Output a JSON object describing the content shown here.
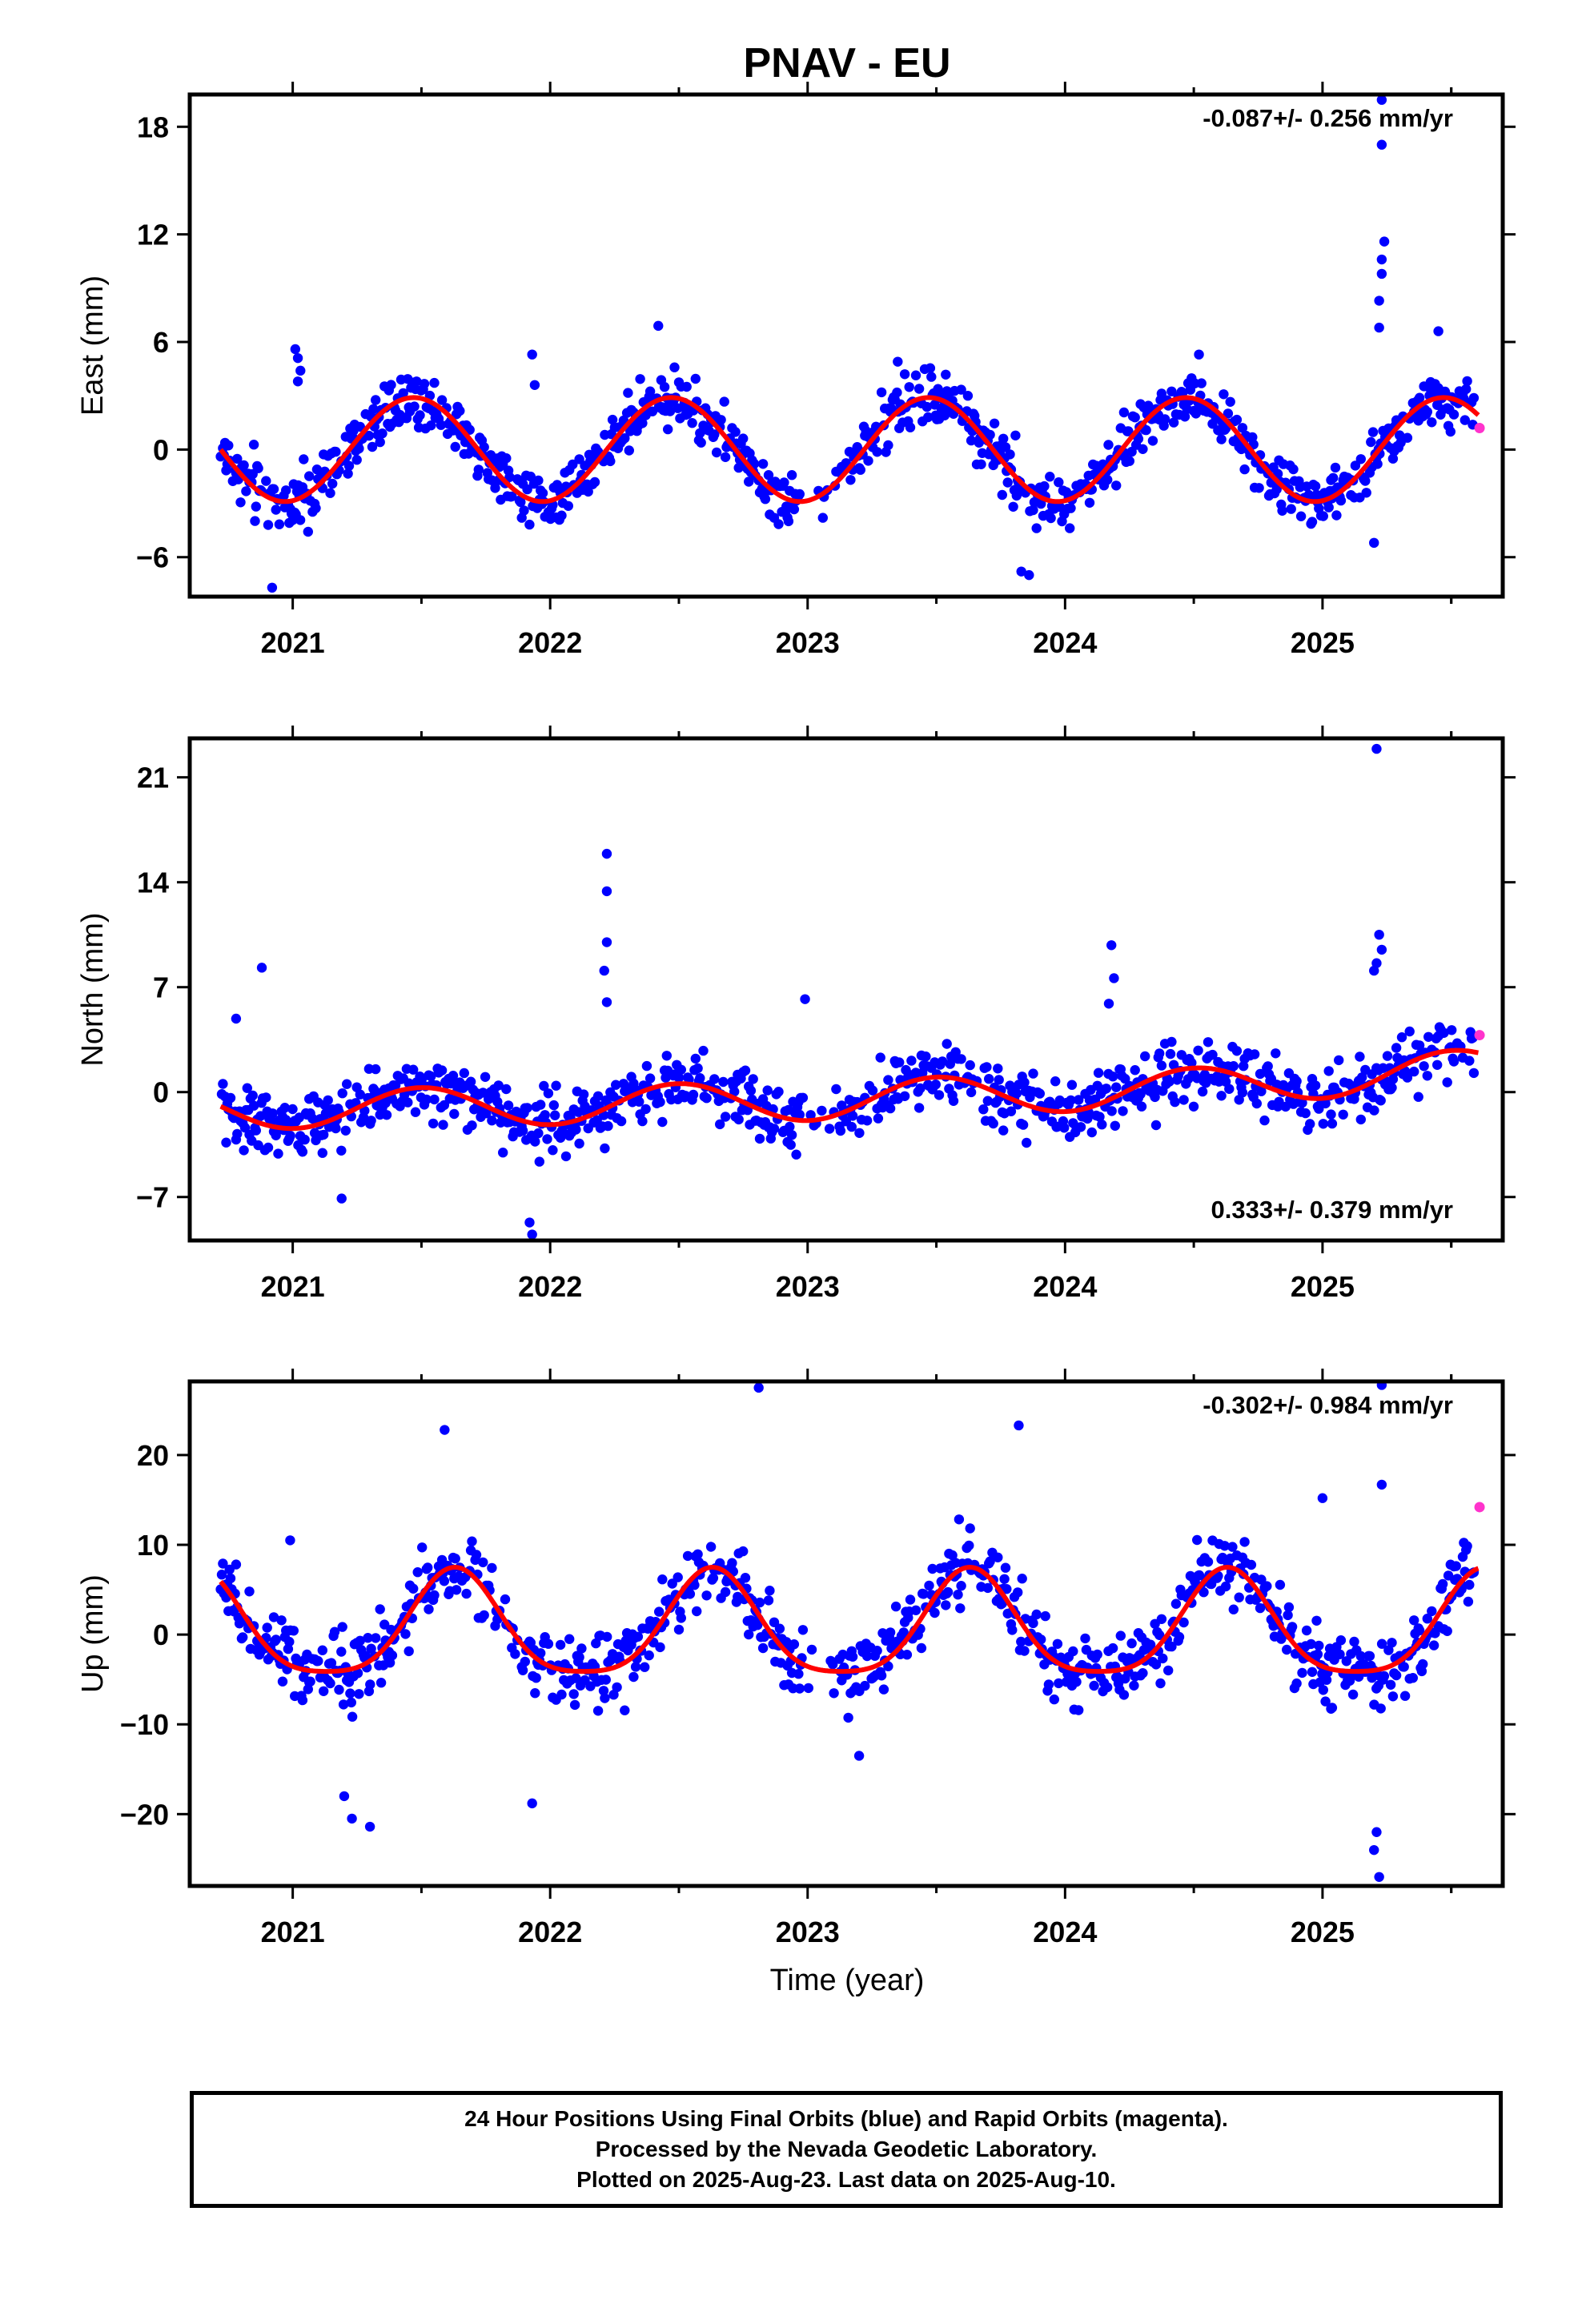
{
  "title": "PNAV - EU",
  "x_label": "Time (year)",
  "x_ticks": [
    "2021",
    "2022",
    "2023",
    "2024",
    "2025"
  ],
  "footer": {
    "line1": "24 Hour Positions Using Final Orbits (blue) and Rapid Orbits (magenta).",
    "line2": "Processed by the Nevada Geodetic Laboratory.",
    "line3": "Plotted on 2025-Aug-23. Last data on 2025-Aug-10."
  },
  "colors": {
    "final_orbits": "#0000ff",
    "rapid_orbits": "#ff33cc",
    "model_fit": "#ff0000"
  },
  "chart_data": [
    {
      "type": "scatter",
      "panel": "east",
      "ylabel": "East (mm)",
      "rate_text": "-0.087+/- 0.256 mm/yr",
      "rate_position": "top-right",
      "xlim": [
        2020.6,
        2025.7
      ],
      "ylim": [
        -8.2,
        19.8
      ],
      "yticks": [
        18,
        12,
        6,
        0,
        -6
      ],
      "fit": {
        "offset": 0.0,
        "annual_amplitude": 2.9,
        "annual_peak": 2020.47,
        "semiannual_amplitude": 0.0,
        "semiannual_peak": 2020.0
      },
      "noise": 1.3,
      "rapid": [
        {
          "x": 2025.61,
          "y": 1.2
        }
      ],
      "outliers": [
        {
          "x": 2020.92,
          "y": -7.7
        },
        {
          "x": 2021.01,
          "y": 5.6
        },
        {
          "x": 2021.02,
          "y": 5.1
        },
        {
          "x": 2021.03,
          "y": 4.4
        },
        {
          "x": 2021.02,
          "y": 3.8
        },
        {
          "x": 2021.93,
          "y": 5.3
        },
        {
          "x": 2021.94,
          "y": 3.6
        },
        {
          "x": 2022.42,
          "y": 6.9
        },
        {
          "x": 2023.35,
          "y": 4.9
        },
        {
          "x": 2023.83,
          "y": -6.8
        },
        {
          "x": 2023.86,
          "y": -7.0
        },
        {
          "x": 2024.52,
          "y": 5.3
        },
        {
          "x": 2025.2,
          "y": -5.2
        },
        {
          "x": 2025.22,
          "y": 6.8
        },
        {
          "x": 2025.22,
          "y": 8.3
        },
        {
          "x": 2025.23,
          "y": 9.8
        },
        {
          "x": 2025.23,
          "y": 10.6
        },
        {
          "x": 2025.24,
          "y": 11.6
        },
        {
          "x": 2025.23,
          "y": 17.0
        },
        {
          "x": 2025.23,
          "y": 19.5
        },
        {
          "x": 2025.45,
          "y": 6.6
        }
      ]
    },
    {
      "type": "scatter",
      "panel": "north",
      "ylabel": "North (mm)",
      "rate_text": "0.333+/- 0.379 mm/yr",
      "rate_position": "bottom-right",
      "xlim": [
        2020.6,
        2025.7
      ],
      "ylim": [
        -9.9,
        23.6
      ],
      "yticks": [
        21,
        14,
        7,
        0,
        -7
      ],
      "fit": {
        "offset": 0.0,
        "annual_amplitude": 1.3,
        "annual_peak": 2020.5,
        "semiannual_amplitude": 0.0,
        "semiannual_peak": 2020.0
      },
      "trend": [
        {
          "x": 2020.72,
          "y": -1.2
        },
        {
          "x": 2021.9,
          "y": -0.9
        },
        {
          "x": 2023.0,
          "y": -0.6
        },
        {
          "x": 2024.5,
          "y": 0.3
        },
        {
          "x": 2025.61,
          "y": 1.6
        }
      ],
      "noise": 1.7,
      "rapid": [
        {
          "x": 2025.61,
          "y": 3.8
        }
      ],
      "outliers": [
        {
          "x": 2020.88,
          "y": 8.3
        },
        {
          "x": 2020.78,
          "y": 4.9
        },
        {
          "x": 2021.19,
          "y": -7.1
        },
        {
          "x": 2021.92,
          "y": -8.7
        },
        {
          "x": 2021.93,
          "y": -9.5
        },
        {
          "x": 2022.22,
          "y": 15.9
        },
        {
          "x": 2022.22,
          "y": 13.4
        },
        {
          "x": 2022.22,
          "y": 10.0
        },
        {
          "x": 2022.21,
          "y": 8.1
        },
        {
          "x": 2022.22,
          "y": 6.0
        },
        {
          "x": 2022.99,
          "y": 6.2
        },
        {
          "x": 2024.18,
          "y": 9.8
        },
        {
          "x": 2024.19,
          "y": 7.6
        },
        {
          "x": 2024.17,
          "y": 5.9
        },
        {
          "x": 2025.21,
          "y": 22.9
        },
        {
          "x": 2025.22,
          "y": 10.5
        },
        {
          "x": 2025.23,
          "y": 9.5
        },
        {
          "x": 2025.21,
          "y": 8.6
        },
        {
          "x": 2025.2,
          "y": 8.1
        }
      ]
    },
    {
      "type": "scatter",
      "panel": "up",
      "ylabel": "Up (mm)",
      "rate_text": "-0.302+/- 0.984 mm/yr",
      "rate_position": "top-right",
      "xlim": [
        2020.6,
        2025.7
      ],
      "ylim": [
        -28.0,
        28.2
      ],
      "yticks": [
        20,
        10,
        0,
        -10,
        -20
      ],
      "fit": {
        "offset": 0.5,
        "annual_amplitude": 5.8,
        "annual_peak": 2020.63,
        "semiannual_amplitude": 1.2,
        "semiannual_peak": 2020.63
      },
      "noise": 3.2,
      "rapid": [
        {
          "x": 2025.61,
          "y": 14.2
        }
      ],
      "outliers": [
        {
          "x": 2020.99,
          "y": 10.5
        },
        {
          "x": 2021.23,
          "y": -20.5
        },
        {
          "x": 2021.3,
          "y": -21.4
        },
        {
          "x": 2021.2,
          "y": -18.0
        },
        {
          "x": 2021.59,
          "y": 22.8
        },
        {
          "x": 2021.93,
          "y": -18.8
        },
        {
          "x": 2022.81,
          "y": 27.5
        },
        {
          "x": 2023.82,
          "y": 23.3
        },
        {
          "x": 2023.2,
          "y": -13.5
        },
        {
          "x": 2025.23,
          "y": 27.8
        },
        {
          "x": 2025.22,
          "y": -27.0
        },
        {
          "x": 2025.2,
          "y": -24.0
        },
        {
          "x": 2025.21,
          "y": -22.0
        },
        {
          "x": 2025.23,
          "y": 16.7
        },
        {
          "x": 2025.0,
          "y": 15.2
        }
      ]
    }
  ]
}
